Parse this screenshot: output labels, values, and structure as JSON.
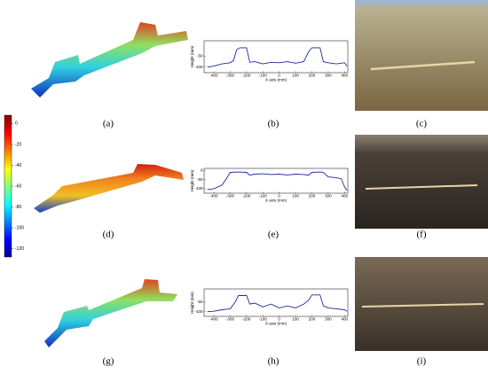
{
  "panels": [
    "(a)",
    "(b)",
    "(c)",
    "(d)",
    "(e)",
    "(f)",
    "(g)",
    "(h)",
    "(i)"
  ],
  "colorbar": {
    "lim": [
      -128,
      8
    ],
    "ticks": [
      0,
      -20,
      -40,
      -60,
      -80,
      -100,
      -120
    ]
  },
  "profiles": [
    {
      "xlabel": "X axis (mm)",
      "ylabel": "Height (mm)",
      "xlim": [
        -460,
        420
      ],
      "ylim": [
        -125,
        20
      ],
      "xticks": [
        -400,
        -300,
        -200,
        -100,
        0,
        100,
        200,
        300,
        400
      ],
      "yticks": [
        -50,
        -100
      ],
      "x": [
        -440,
        -400,
        -350,
        -300,
        -280,
        -260,
        -240,
        -200,
        -180,
        -150,
        -100,
        -50,
        0,
        50,
        100,
        150,
        180,
        200,
        250,
        270,
        300,
        350,
        400,
        415
      ],
      "values": [
        -100,
        -95,
        -85,
        -80,
        -70,
        -20,
        -12,
        -12,
        -78,
        -75,
        -85,
        -78,
        -80,
        -75,
        -82,
        -75,
        -30,
        -12,
        -12,
        -75,
        -80,
        -85,
        -80,
        -95
      ]
    },
    {
      "xlabel": "X axis (mm)",
      "ylabel": "Height (mm)",
      "xlim": [
        -460,
        420
      ],
      "ylim": [
        -125,
        12
      ],
      "xticks": [
        -400,
        -300,
        -200,
        -100,
        0,
        100,
        200,
        300,
        400
      ],
      "yticks": [
        0,
        -50,
        -100
      ],
      "x": [
        -440,
        -400,
        -350,
        -320,
        -300,
        -250,
        -200,
        -180,
        -150,
        -100,
        -50,
        0,
        50,
        100,
        150,
        180,
        200,
        250,
        270,
        300,
        350,
        380,
        400,
        415
      ],
      "values": [
        -105,
        -100,
        -80,
        -40,
        -10,
        -8,
        -10,
        -25,
        -20,
        -18,
        -22,
        -20,
        -24,
        -20,
        -22,
        -25,
        -10,
        -8,
        -10,
        -35,
        -40,
        -45,
        -90,
        -110
      ]
    },
    {
      "xlabel": "X axis (mm)",
      "ylabel": "Height (mm)",
      "xlim": [
        -460,
        420
      ],
      "ylim": [
        -125,
        20
      ],
      "xticks": [
        -400,
        -300,
        -200,
        -100,
        0,
        100,
        200,
        300,
        400
      ],
      "yticks": [
        -50,
        -100
      ],
      "x": [
        -440,
        -400,
        -350,
        -300,
        -270,
        -250,
        -200,
        -180,
        -150,
        -100,
        -50,
        0,
        50,
        100,
        150,
        180,
        200,
        250,
        270,
        300,
        350,
        400,
        415
      ],
      "values": [
        -100,
        -98,
        -90,
        -85,
        -50,
        -15,
        -15,
        -60,
        -55,
        -75,
        -60,
        -80,
        -70,
        -80,
        -60,
        -40,
        -12,
        -12,
        -70,
        -80,
        -85,
        -90,
        -98
      ]
    }
  ]
}
